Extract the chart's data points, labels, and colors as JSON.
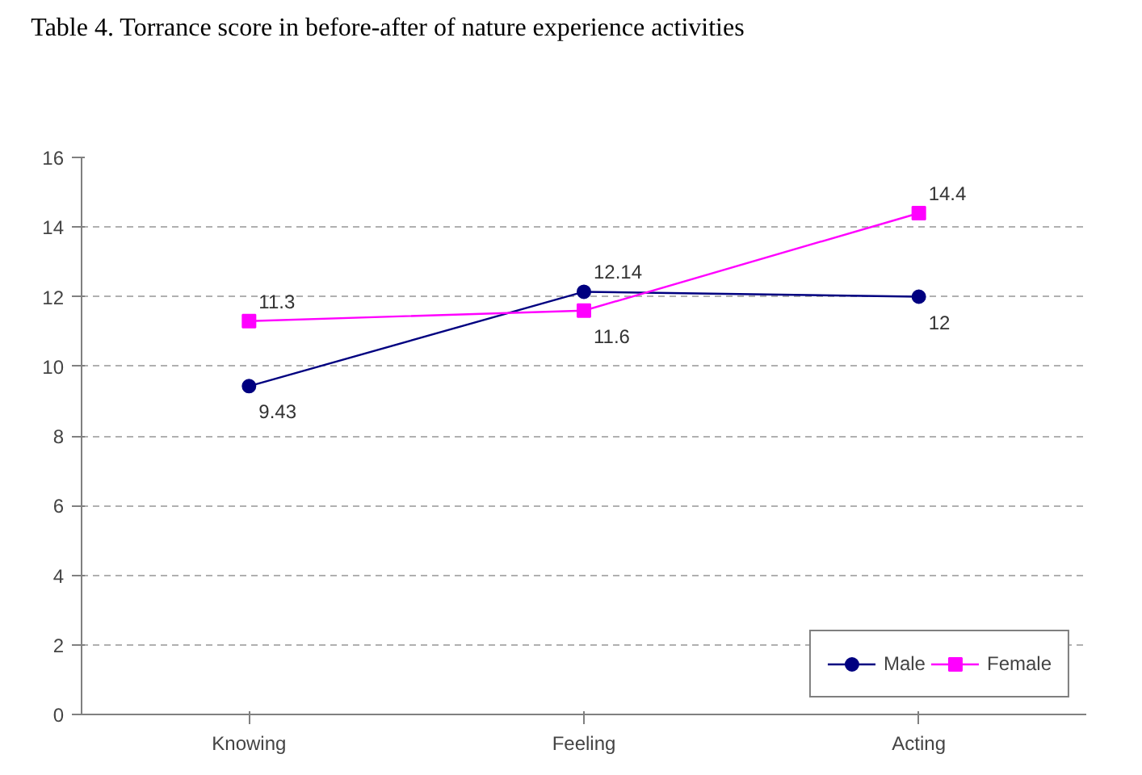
{
  "chart_data": {
    "type": "line",
    "title": "Table 4. Torrance score in before-after of nature experience activities",
    "categories": [
      "Knowing",
      "Feeling",
      "Acting"
    ],
    "series": [
      {
        "name": "Male",
        "color": "#000080",
        "values": [
          9.43,
          12.14,
          12
        ],
        "marker": "circle"
      },
      {
        "name": "Female",
        "color": "#ff00ff",
        "values": [
          11.3,
          11.6,
          14.4
        ],
        "marker": "square"
      }
    ],
    "ylim": [
      0,
      16
    ],
    "yticks": [
      0,
      2,
      4,
      6,
      8,
      10,
      12,
      14,
      16
    ],
    "grid": "y",
    "legend": "bottom right",
    "data_labels": true,
    "line_style": "solid"
  }
}
